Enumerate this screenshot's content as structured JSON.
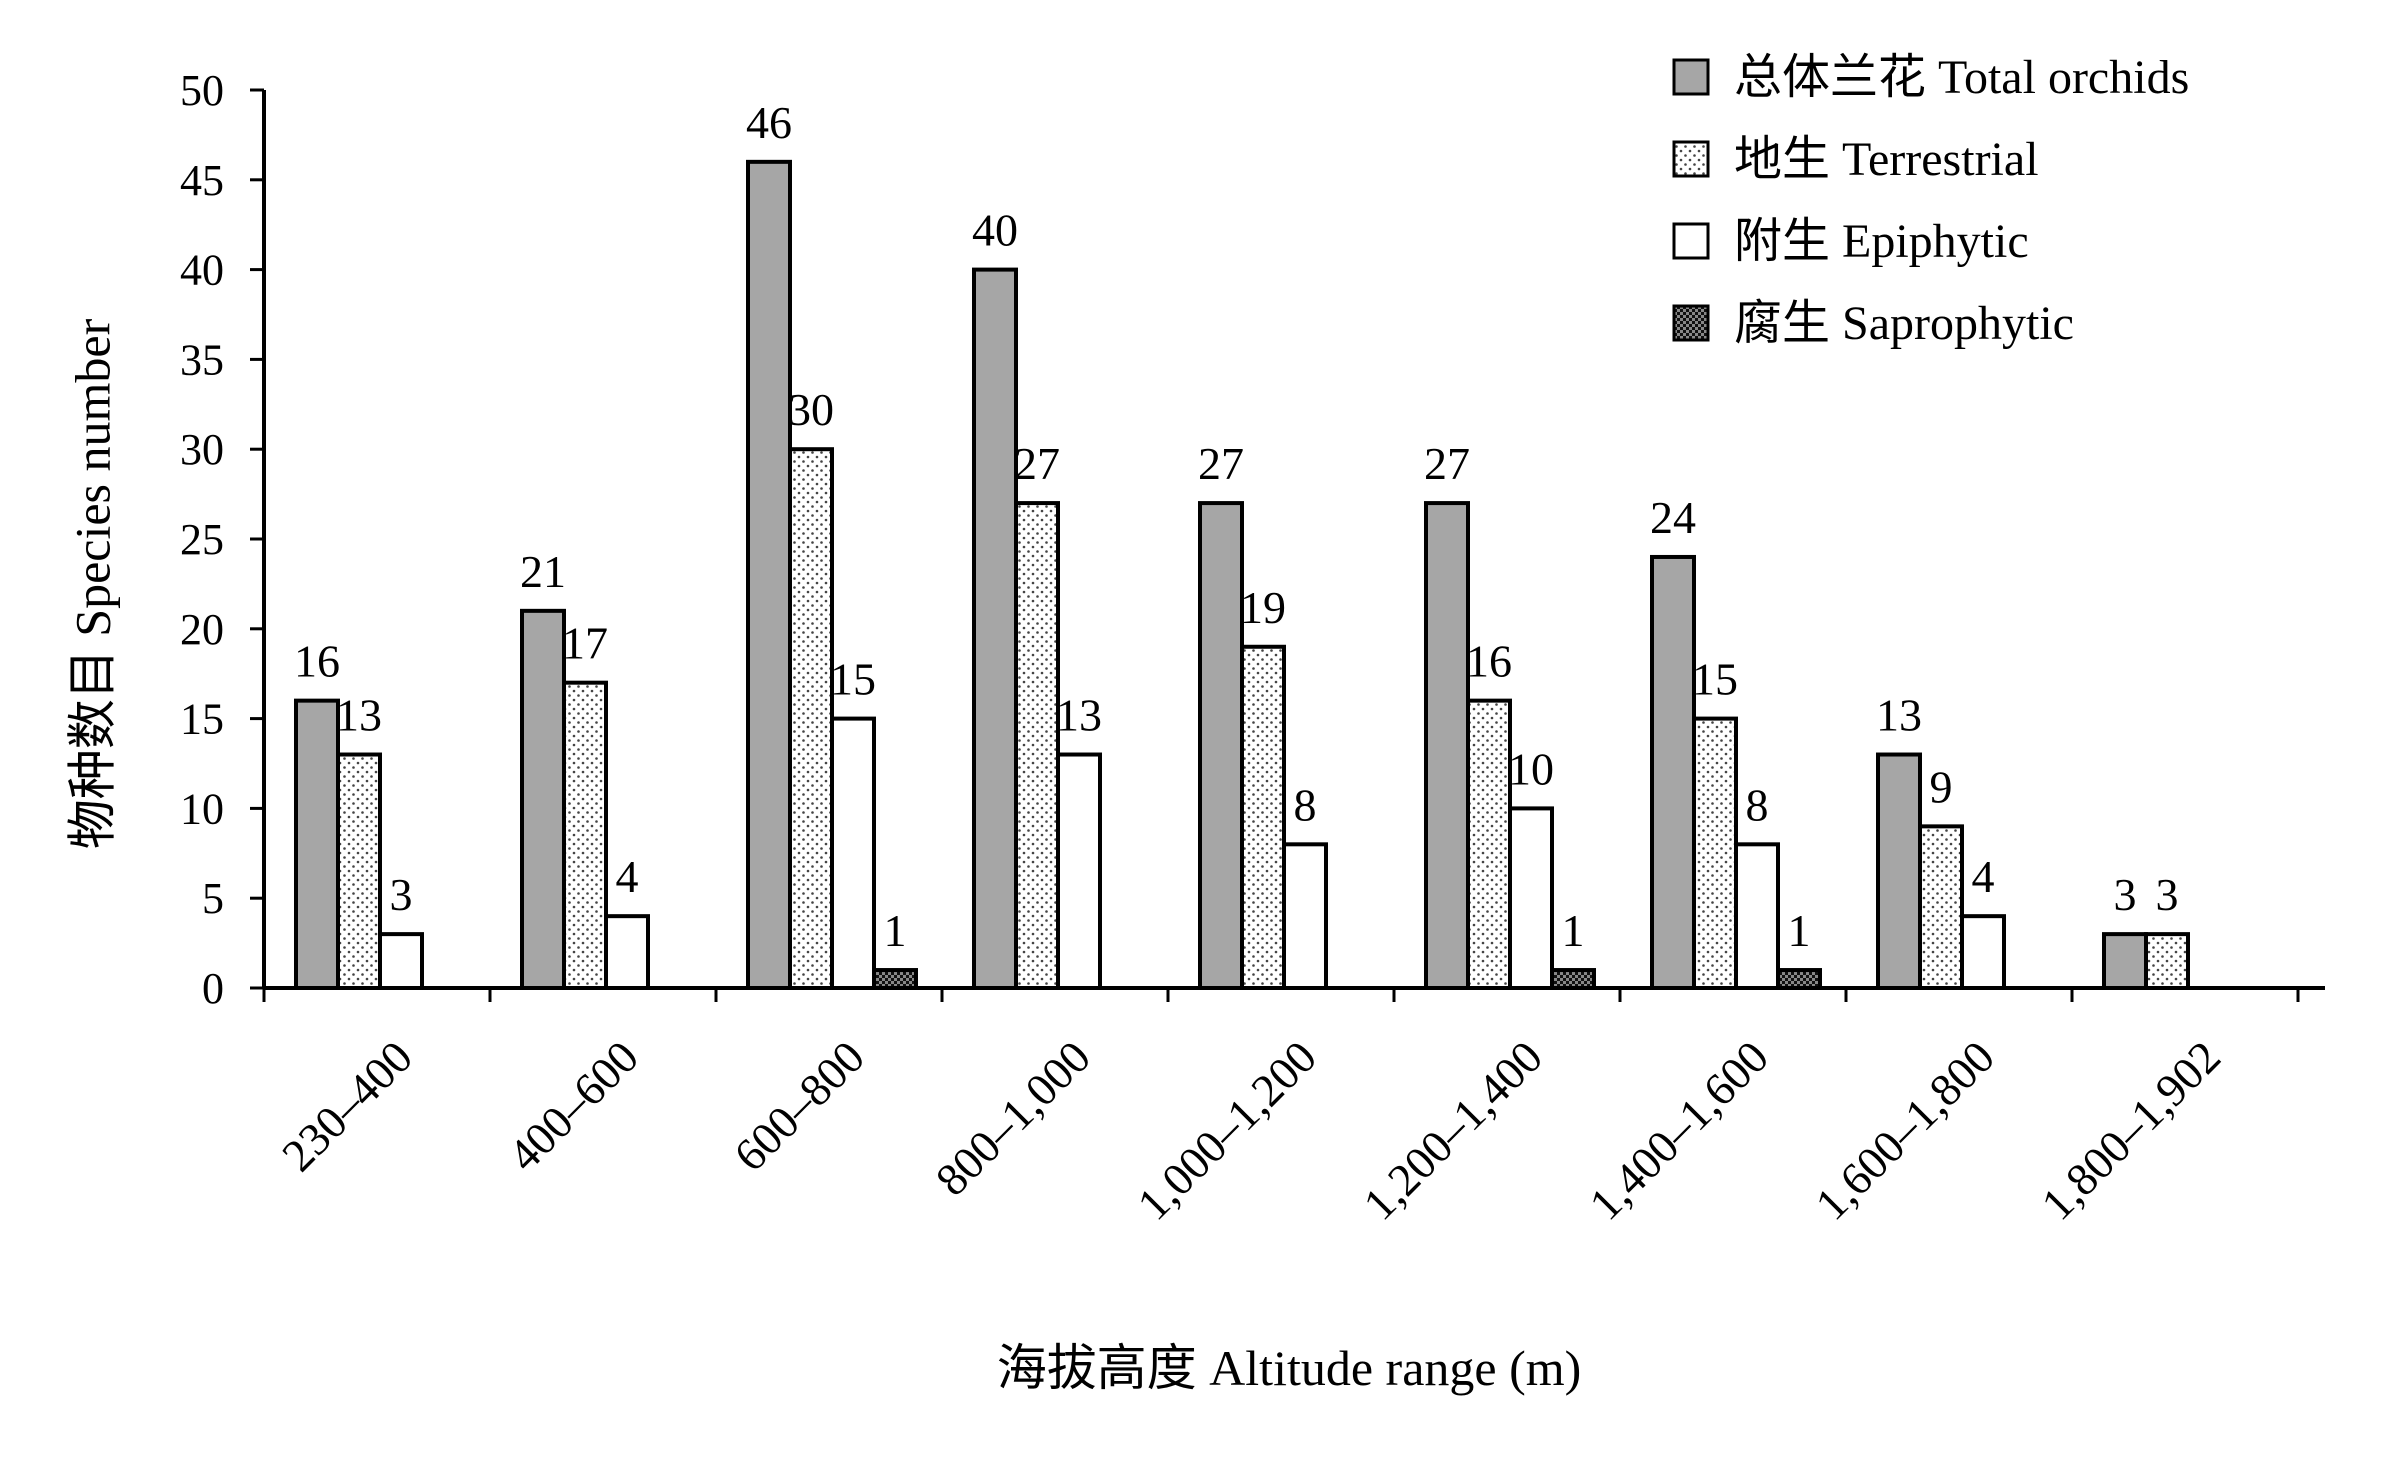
{
  "chart_data": {
    "type": "bar",
    "xlabel": "海拔高度 Altitude range (m)",
    "ylabel": "物种数目 Species number",
    "ylim": [
      0,
      50
    ],
    "yticks": [
      0,
      5,
      10,
      15,
      20,
      25,
      30,
      35,
      40,
      45,
      50
    ],
    "grid": false,
    "legend_position": "top-right",
    "categories": [
      "230–400",
      "400–600",
      "600–800",
      "800–1,000",
      "1,000–1,200",
      "1,200–1,400",
      "1,400–1,600",
      "1,600–1,800",
      "1,800–1,902"
    ],
    "series": [
      {
        "name": "总体兰花 Total orchids",
        "fill": "#a6a6a6",
        "pattern": "solid",
        "values": [
          16,
          21,
          46,
          40,
          27,
          27,
          24,
          13,
          3
        ]
      },
      {
        "name": "地生 Terrestrial",
        "fill": "#ffffff",
        "pattern": "dots",
        "values": [
          13,
          17,
          30,
          27,
          19,
          16,
          15,
          9,
          3
        ]
      },
      {
        "name": "附生 Epiphytic",
        "fill": "#ffffff",
        "pattern": "solid",
        "values": [
          3,
          4,
          15,
          13,
          8,
          10,
          8,
          4,
          0
        ]
      },
      {
        "name": "腐生 Saprophytic",
        "fill": "#333333",
        "pattern": "checker",
        "values": [
          0,
          0,
          1,
          0,
          0,
          1,
          1,
          0,
          0
        ]
      }
    ],
    "data_labels": [
      [
        "16",
        "13",
        "3",
        ""
      ],
      [
        "21",
        "17",
        "4",
        ""
      ],
      [
        "46",
        "30",
        "15",
        "1"
      ],
      [
        "40",
        "27",
        "13",
        ""
      ],
      [
        "27",
        "19",
        "8",
        ""
      ],
      [
        "27",
        "16",
        "10",
        "1"
      ],
      [
        "24",
        "15",
        "8",
        "1"
      ],
      [
        "13",
        "9",
        "4",
        ""
      ],
      [
        "3",
        "3",
        "",
        ""
      ]
    ]
  }
}
